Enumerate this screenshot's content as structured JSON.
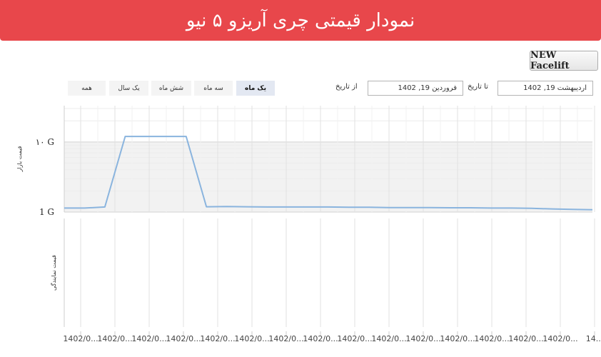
{
  "header": {
    "title": "نمودار قیمتی چری آریزو ۵ نیو"
  },
  "variant_button": {
    "label": "NEW Facelift"
  },
  "range_buttons": [
    {
      "label": "یک ماه",
      "active": true
    },
    {
      "label": "سه ماه",
      "active": false
    },
    {
      "label": "شش ماه",
      "active": false
    },
    {
      "label": "یک سال",
      "active": false
    },
    {
      "label": "همه",
      "active": false
    }
  ],
  "date_filter": {
    "from_label": "از تاریخ",
    "from_value": "فروردین 19, 1402",
    "to_label": "تا تاریخ",
    "to_value": "اردیبهشت 19, 1402"
  },
  "colors": {
    "header": "#e8474b",
    "line": "#8ab4de",
    "band": "#f2f2f2",
    "grid": "#e1e1e1"
  },
  "chart_data": {
    "type": "line",
    "y_scale": "log",
    "top_panel": {
      "ylabel": "قیمت بازار",
      "y_ticks": [
        {
          "label": "1 G",
          "value": 1000000000
        },
        {
          "label": "۱۰ G",
          "value": 10000000000
        }
      ],
      "ylim": [
        1000000000,
        30000000000
      ],
      "series": [
        {
          "values": [
            1140000000,
            1140000000,
            1180000000,
            12000000000,
            12000000000,
            12000000000,
            12000000000,
            1190000000,
            1200000000,
            1190000000,
            1180000000,
            1180000000,
            1180000000,
            1180000000,
            1170000000,
            1170000000,
            1160000000,
            1160000000,
            1160000000,
            1150000000,
            1150000000,
            1140000000,
            1140000000,
            1130000000,
            1110000000,
            1090000000,
            1080000000
          ]
        }
      ]
    },
    "bottom_panel": {
      "ylabel": "قیمت نمایندگی",
      "series": []
    },
    "x_tick_labels": [
      "1402/0...",
      "1402/0...",
      "1402/0...",
      "1402/0...",
      "1402/0...",
      "1402/0...",
      "1402/0...",
      "1402/0...",
      "1402/0...",
      "1402/0...",
      "1402/0...",
      "1402/0...",
      "1402/0...",
      "1402/0...",
      "1402/0...",
      "14..."
    ],
    "grid": true
  }
}
